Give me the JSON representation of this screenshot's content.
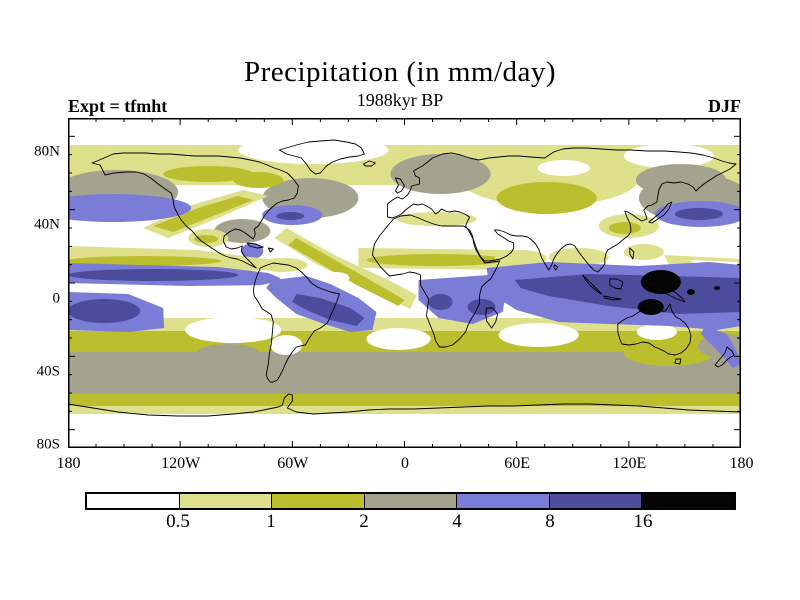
{
  "header": {
    "title": "Precipitation (in mm/day)",
    "subtitle": "1988kyr BP",
    "experiment_label": "Expt = tfmht",
    "season_label": "DJF"
  },
  "colors": {
    "coastline": "#000000",
    "frame": "#000000",
    "background": "#ffffff"
  },
  "chart_data": {
    "type": "heatmap",
    "variant": "filled-contour-world-map",
    "title": "Precipitation (in mm/day)",
    "subtitle": "1988kyr BP",
    "experiment": "tfmht",
    "season": "DJF",
    "time_label": "1988kyr BP",
    "projection": "equirectangular (global)",
    "x_axis": {
      "ticks": [
        "180",
        "120W",
        "60W",
        "0",
        "60E",
        "120E",
        "180"
      ],
      "range_deg": [
        -180,
        180
      ],
      "major_tick_every_deg": 60,
      "minor_tick_every_deg": 15
    },
    "y_axis": {
      "ticks": [
        "80N",
        "40N",
        "0",
        "40S",
        "80S"
      ],
      "range_deg": [
        -90,
        90
      ],
      "major_tick_every_deg": 40,
      "minor_tick_every_deg": 10
    },
    "colorbar": {
      "orientation": "horizontal",
      "position": "bottom",
      "units": "mm/day",
      "levels": [
        0.5,
        1,
        2,
        4,
        8,
        16
      ],
      "labels": [
        "0.5",
        "1",
        "2",
        "4",
        "8",
        "16"
      ],
      "colors": [
        "#ffffff",
        "#dfe08c",
        "#bcbf2d",
        "#a3a390",
        "#7b7cd6",
        "#4c4c9c",
        "#050505"
      ]
    },
    "features": [
      {
        "region": "Equatorial Pacific ITCZ just north of equator (180-90W)",
        "value_mm_day": "8-16"
      },
      {
        "region": "Maritime Continent / New Guinea / west Pacific warm pool",
        "value_mm_day": ">16 local maxima (black)"
      },
      {
        "region": "South Indian Ocean band ~0-15S from Africa to 180",
        "value_mm_day": "8-16"
      },
      {
        "region": "South Pacific Convergence Zone (180-150W, 5-20S)",
        "value_mm_day": "8-16"
      },
      {
        "region": "Amazon basin / SACZ into South Atlantic",
        "value_mm_day": "8-16"
      },
      {
        "region": "Central-southern Africa and Madagascar",
        "value_mm_day": "4-16"
      },
      {
        "region": "North Pacific and North Atlantic storm tracks ~35-45N",
        "value_mm_day": "4-8, small 8-16 cores"
      },
      {
        "region": "Southern Ocean belt 40-60S",
        "value_mm_day": "2-4 (gray)"
      },
      {
        "region": "Northern high latitudes 55-75N",
        "value_mm_day": "0.5-2 (yellows), 2-4 over N Europe / N Pacific coasts"
      },
      {
        "region": "Subtropical dry zones, Sahara, Arabia, central Asia, Arctic, Antarctica, SE Pacific, Nordeste-equatorial Atlantic",
        "value_mm_day": "<0.5 (white)"
      }
    ]
  }
}
